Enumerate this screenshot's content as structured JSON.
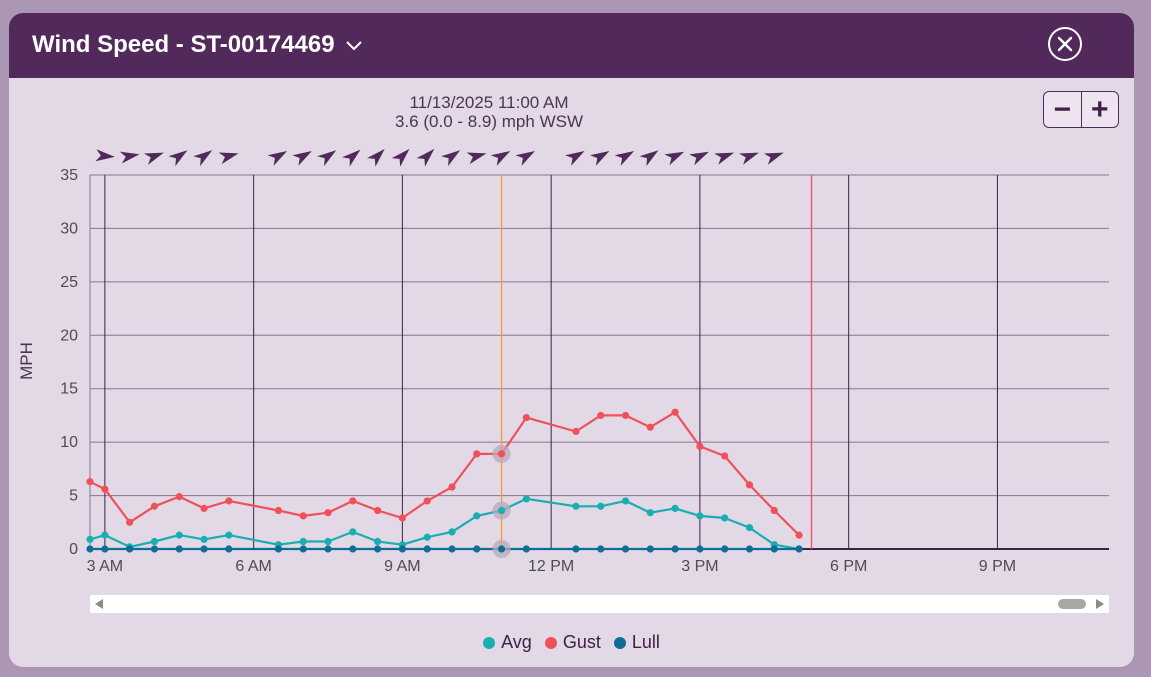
{
  "header": {
    "title": "Wind Speed - ST-00174469",
    "chevron_icon": "chevron-down-icon",
    "close_icon": "close-circle-icon"
  },
  "readout": {
    "time": "11/13/2025 11:00 AM",
    "value": "3.6 (0.0 - 8.9) mph WSW"
  },
  "zoom": {
    "out_label": "−",
    "in_label": "+"
  },
  "colors": {
    "avg": "#19aeb0",
    "gust": "#f0505a",
    "lull": "#0f6e93",
    "header": "#512a5b",
    "cursor": "#f0a030",
    "now": "#f0505a"
  },
  "chart_data": {
    "type": "line",
    "ylabel": "MPH",
    "ylim": [
      0,
      35
    ],
    "yticks": [
      0,
      5,
      10,
      15,
      20,
      25,
      30,
      35
    ],
    "x_unit": "hour of day, 11/13/2025",
    "xlim": [
      2.7,
      23.25
    ],
    "xticks": [
      {
        "t": 3,
        "label": "3 AM"
      },
      {
        "t": 6,
        "label": "6 AM"
      },
      {
        "t": 9,
        "label": "9 AM"
      },
      {
        "t": 12,
        "label": "12 PM"
      },
      {
        "t": 15,
        "label": "3 PM"
      },
      {
        "t": 18,
        "label": "6 PM"
      },
      {
        "t": 21,
        "label": "9 PM"
      }
    ],
    "grid": true,
    "cursor_hour": 11,
    "now_hour": 17.25,
    "series": [
      {
        "name": "Avg",
        "color": "#19aeb0",
        "points": [
          [
            2.7,
            0.9
          ],
          [
            3.0,
            1.3
          ],
          [
            3.5,
            0.2
          ],
          [
            4.0,
            0.7
          ],
          [
            4.5,
            1.3
          ],
          [
            5.0,
            0.9
          ],
          [
            5.5,
            1.3
          ],
          [
            6.5,
            0.4
          ],
          [
            7.0,
            0.7
          ],
          [
            7.5,
            0.7
          ],
          [
            8.0,
            1.6
          ],
          [
            8.5,
            0.7
          ],
          [
            9.0,
            0.4
          ],
          [
            9.5,
            1.1
          ],
          [
            10.0,
            1.6
          ],
          [
            10.5,
            3.1
          ],
          [
            11.0,
            3.6
          ],
          [
            11.5,
            4.7
          ],
          [
            12.5,
            4.0
          ],
          [
            13.0,
            4.0
          ],
          [
            13.5,
            4.5
          ],
          [
            14.0,
            3.4
          ],
          [
            14.5,
            3.8
          ],
          [
            15.0,
            3.1
          ],
          [
            15.5,
            2.9
          ],
          [
            16.0,
            2.0
          ],
          [
            16.5,
            0.4
          ],
          [
            17.0,
            0.0
          ]
        ]
      },
      {
        "name": "Gust",
        "color": "#f0505a",
        "points": [
          [
            2.7,
            6.3
          ],
          [
            3.0,
            5.6
          ],
          [
            3.5,
            2.5
          ],
          [
            4.0,
            4.0
          ],
          [
            4.5,
            4.9
          ],
          [
            5.0,
            3.8
          ],
          [
            5.5,
            4.5
          ],
          [
            6.5,
            3.6
          ],
          [
            7.0,
            3.1
          ],
          [
            7.5,
            3.4
          ],
          [
            8.0,
            4.5
          ],
          [
            8.5,
            3.6
          ],
          [
            9.0,
            2.9
          ],
          [
            9.5,
            4.5
          ],
          [
            10.0,
            5.8
          ],
          [
            10.5,
            8.9
          ],
          [
            11.0,
            8.9
          ],
          [
            11.5,
            12.3
          ],
          [
            12.5,
            11.0
          ],
          [
            13.0,
            12.5
          ],
          [
            13.5,
            12.5
          ],
          [
            14.0,
            11.4
          ],
          [
            14.5,
            12.8
          ],
          [
            15.0,
            9.6
          ],
          [
            15.5,
            8.7
          ],
          [
            16.0,
            6.0
          ],
          [
            16.5,
            3.6
          ],
          [
            17.0,
            1.3
          ]
        ]
      },
      {
        "name": "Lull",
        "color": "#0f6e93",
        "points": [
          [
            2.7,
            0
          ],
          [
            3.0,
            0
          ],
          [
            3.5,
            0
          ],
          [
            4.0,
            0
          ],
          [
            4.5,
            0
          ],
          [
            5.0,
            0
          ],
          [
            5.5,
            0
          ],
          [
            6.5,
            0
          ],
          [
            7.0,
            0
          ],
          [
            7.5,
            0
          ],
          [
            8.0,
            0
          ],
          [
            8.5,
            0
          ],
          [
            9.0,
            0
          ],
          [
            9.5,
            0
          ],
          [
            10.0,
            0
          ],
          [
            10.5,
            0
          ],
          [
            11.0,
            0
          ],
          [
            11.5,
            0
          ],
          [
            12.5,
            0
          ],
          [
            13.0,
            0
          ],
          [
            13.5,
            0
          ],
          [
            14.0,
            0
          ],
          [
            14.5,
            0
          ],
          [
            15.0,
            0
          ],
          [
            15.5,
            0
          ],
          [
            16.0,
            0
          ],
          [
            16.5,
            0
          ],
          [
            17.0,
            0
          ]
        ]
      }
    ],
    "wind_direction_arrows": [
      {
        "t": 3.0,
        "dir_deg": 95
      },
      {
        "t": 3.5,
        "dir_deg": 80
      },
      {
        "t": 4.0,
        "dir_deg": 70
      },
      {
        "t": 4.5,
        "dir_deg": 55
      },
      {
        "t": 5.0,
        "dir_deg": 55
      },
      {
        "t": 5.5,
        "dir_deg": 75
      },
      {
        "t": 6.5,
        "dir_deg": 60
      },
      {
        "t": 7.0,
        "dir_deg": 60
      },
      {
        "t": 7.5,
        "dir_deg": 55
      },
      {
        "t": 8.0,
        "dir_deg": 50
      },
      {
        "t": 8.5,
        "dir_deg": 45
      },
      {
        "t": 9.0,
        "dir_deg": 45
      },
      {
        "t": 9.5,
        "dir_deg": 45
      },
      {
        "t": 10.0,
        "dir_deg": 55
      },
      {
        "t": 10.5,
        "dir_deg": 75
      },
      {
        "t": 11.0,
        "dir_deg": 60
      },
      {
        "t": 11.5,
        "dir_deg": 60
      },
      {
        "t": 12.5,
        "dir_deg": 60
      },
      {
        "t": 13.0,
        "dir_deg": 60
      },
      {
        "t": 13.5,
        "dir_deg": 60
      },
      {
        "t": 14.0,
        "dir_deg": 55
      },
      {
        "t": 14.5,
        "dir_deg": 65
      },
      {
        "t": 15.0,
        "dir_deg": 65
      },
      {
        "t": 15.5,
        "dir_deg": 70
      },
      {
        "t": 16.0,
        "dir_deg": 70
      },
      {
        "t": 16.5,
        "dir_deg": 70
      }
    ]
  },
  "legend": [
    {
      "label": "Avg",
      "color": "#19aeb0"
    },
    {
      "label": "Gust",
      "color": "#f0505a"
    },
    {
      "label": "Lull",
      "color": "#0f6e93"
    }
  ]
}
